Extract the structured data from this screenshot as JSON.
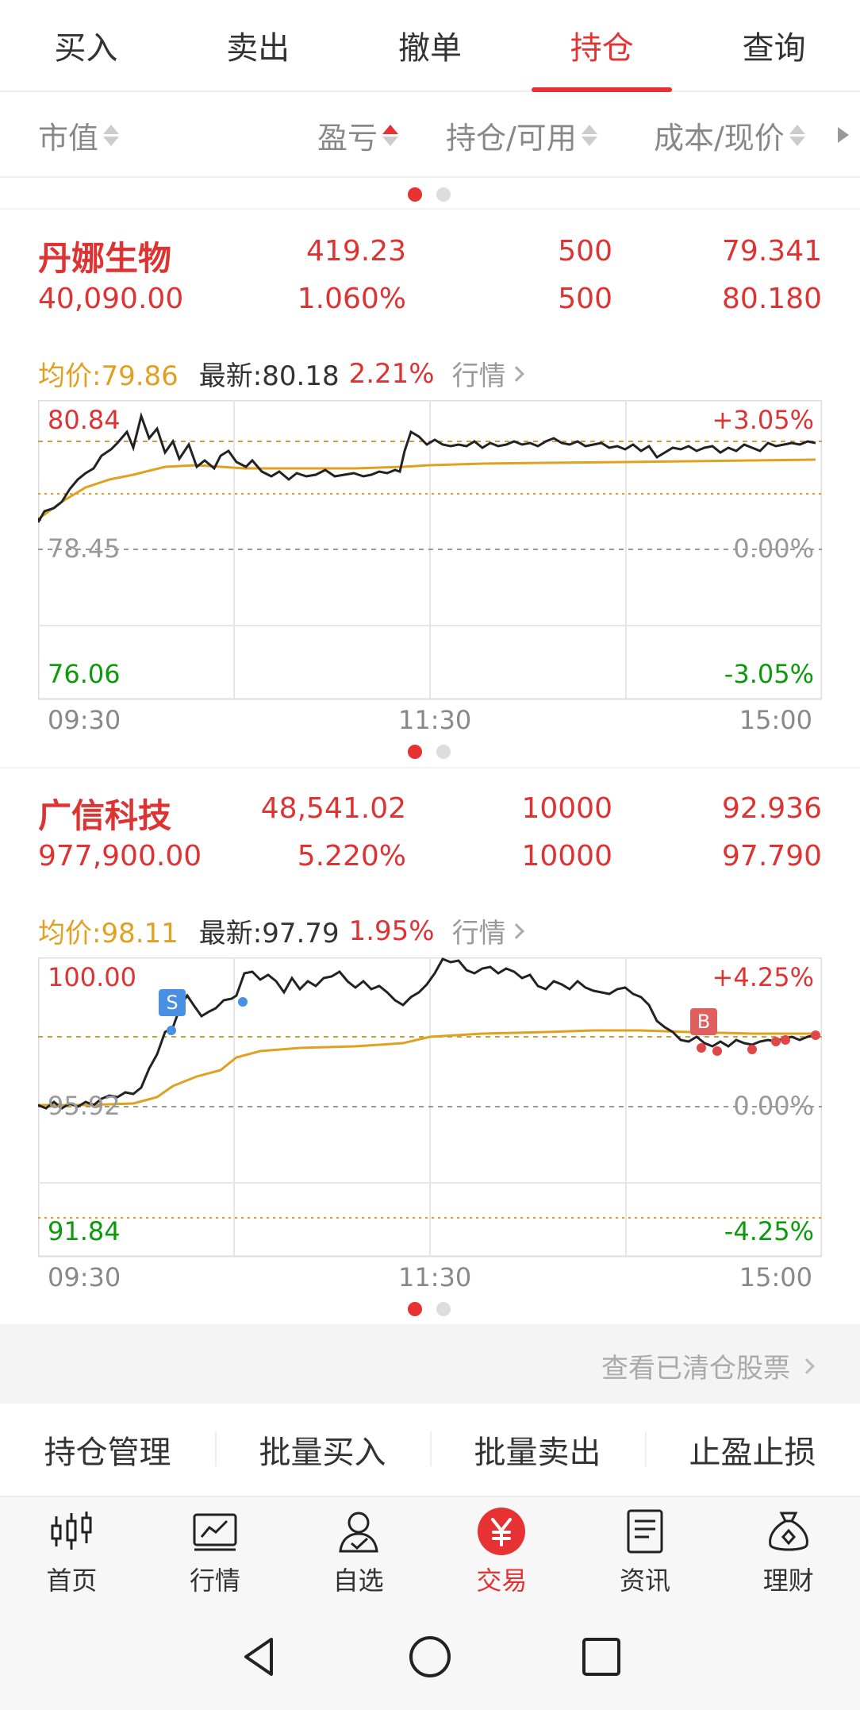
{
  "top_tabs": [
    {
      "label": "买入"
    },
    {
      "label": "卖出"
    },
    {
      "label": "撤单"
    },
    {
      "label": "持仓",
      "active": true
    },
    {
      "label": "查询"
    }
  ],
  "columns": {
    "market_value": "市值",
    "profit_loss": "盈亏",
    "holding_available": "持仓/可用",
    "cost_price": "成本/现价"
  },
  "stocks": [
    {
      "name": "丹娜生物",
      "market_value": "40,090.00",
      "profit_loss": "419.23",
      "profit_loss_pct": "1.060%",
      "holding": "500",
      "available": "500",
      "cost": "79.341",
      "price": "80.180",
      "avg_label": "均价:79.86",
      "latest_label": "最新:80.18",
      "change_pct": "2.21%",
      "quote_link": "行情",
      "chart": {
        "y_high": "80.84",
        "y_mid": "78.45",
        "y_low": "76.06",
        "pct_high": "+3.05%",
        "pct_mid": "0.00%",
        "pct_low": "-3.05%",
        "x_start": "09:30",
        "x_mid": "11:30",
        "x_end": "15:00"
      }
    },
    {
      "name": "广信科技",
      "market_value": "977,900.00",
      "profit_loss": "48,541.02",
      "profit_loss_pct": "5.220%",
      "holding": "10000",
      "available": "10000",
      "cost": "92.936",
      "price": "97.790",
      "avg_label": "均价:98.11",
      "latest_label": "最新:97.79",
      "change_pct": "1.95%",
      "quote_link": "行情",
      "chart": {
        "y_high": "100.00",
        "y_mid": "95.92",
        "y_low": "91.84",
        "pct_high": "+4.25%",
        "pct_mid": "0.00%",
        "pct_low": "-4.25%",
        "x_start": "09:30",
        "x_mid": "11:30",
        "x_end": "15:00",
        "sell_marker": "S",
        "buy_marker": "B"
      }
    }
  ],
  "cleared_link": "查看已清仓股票",
  "actions": [
    "持仓管理",
    "批量买入",
    "批量卖出",
    "止盈止损"
  ],
  "bottom_nav": [
    {
      "label": "首页",
      "icon": "candlestick-icon"
    },
    {
      "label": "行情",
      "icon": "chart-icon"
    },
    {
      "label": "自选",
      "icon": "user-check-icon"
    },
    {
      "label": "交易",
      "icon": "yuan-icon",
      "active": true
    },
    {
      "label": "资讯",
      "icon": "document-icon"
    },
    {
      "label": "理财",
      "icon": "money-bag-icon"
    }
  ],
  "colors": {
    "accent_red": "#e63232",
    "gain_red": "#d33333",
    "loss_green": "#0a9a0a",
    "avg_gold": "#e0a020"
  }
}
